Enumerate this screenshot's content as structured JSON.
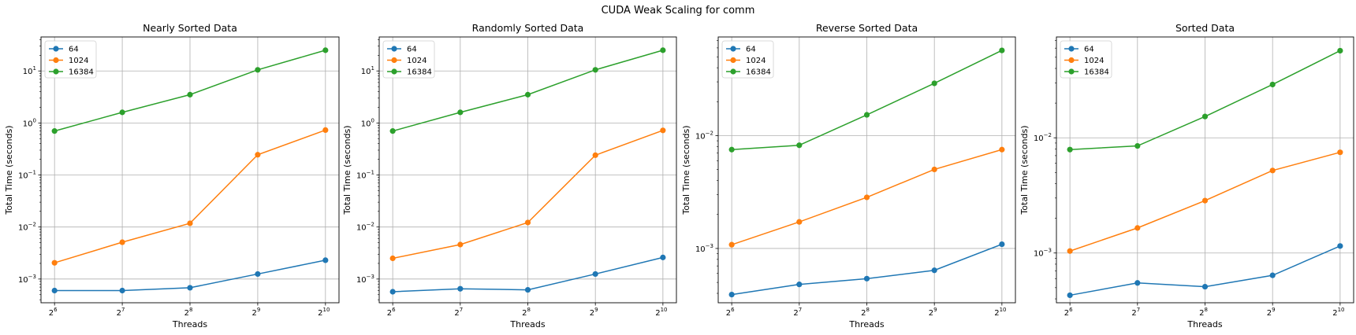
{
  "figure": {
    "title": "CUDA Weak Scaling for comm"
  },
  "colors": {
    "64": "#1f77b4",
    "1024": "#ff7f0e",
    "16384": "#2ca02c",
    "grid": "#b0b0b0"
  },
  "chart_data": [
    {
      "type": "line",
      "title": "Nearly Sorted Data",
      "xlabel": "Threads",
      "ylabel": "Total Time (seconds)",
      "xscale": "log2",
      "yscale": "log10",
      "x": [
        64,
        128,
        256,
        512,
        1024
      ],
      "x_tick_exponents": [
        "6",
        "7",
        "8",
        "9",
        "10"
      ],
      "ylim": [
        0.00035,
        45
      ],
      "y_tick_exponents": [
        "-3",
        "-2",
        "-1",
        "0",
        "1"
      ],
      "grid": true,
      "legend": "top-left",
      "series": [
        {
          "name": "64",
          "values": [
            0.0006,
            0.0006,
            0.00068,
            0.00125,
            0.0023
          ]
        },
        {
          "name": "1024",
          "values": [
            0.00205,
            0.0051,
            0.0118,
            0.245,
            0.73
          ]
        },
        {
          "name": "16384",
          "values": [
            0.7,
            1.6,
            3.5,
            10.5,
            25
          ]
        }
      ]
    },
    {
      "type": "line",
      "title": "Randomly Sorted Data",
      "xlabel": "Threads",
      "ylabel": "Total Time (seconds)",
      "xscale": "log2",
      "yscale": "log10",
      "x": [
        64,
        128,
        256,
        512,
        1024
      ],
      "x_tick_exponents": [
        "6",
        "7",
        "8",
        "9",
        "10"
      ],
      "ylim": [
        0.00035,
        45
      ],
      "y_tick_exponents": [
        "-3",
        "-2",
        "-1",
        "0",
        "1"
      ],
      "grid": true,
      "legend": "top-left",
      "series": [
        {
          "name": "64",
          "values": [
            0.00057,
            0.00065,
            0.00062,
            0.00125,
            0.0026
          ]
        },
        {
          "name": "1024",
          "values": [
            0.0025,
            0.0046,
            0.0122,
            0.24,
            0.72
          ]
        },
        {
          "name": "16384",
          "values": [
            0.7,
            1.6,
            3.5,
            10.5,
            25
          ]
        }
      ]
    },
    {
      "type": "line",
      "title": "Reverse Sorted Data",
      "xlabel": "Threads",
      "ylabel": "Total Time (seconds)",
      "xscale": "log2",
      "yscale": "log10",
      "x": [
        64,
        128,
        256,
        512,
        1024
      ],
      "x_tick_exponents": [
        "6",
        "7",
        "8",
        "9",
        "10"
      ],
      "ylim": [
        0.00033,
        0.075
      ],
      "y_tick_exponents": [
        "-3",
        "-2"
      ],
      "grid": true,
      "legend": "top-left",
      "series": [
        {
          "name": "64",
          "values": [
            0.00039,
            0.00048,
            0.00054,
            0.00064,
            0.00109
          ]
        },
        {
          "name": "1024",
          "values": [
            0.00108,
            0.00172,
            0.00284,
            0.00502,
            0.00752
          ]
        },
        {
          "name": "16384",
          "values": [
            0.00752,
            0.00822,
            0.0153,
            0.0291,
            0.057
          ]
        }
      ]
    },
    {
      "type": "line",
      "title": "Sorted Data",
      "xlabel": "Threads",
      "ylabel": "Total Time (seconds)",
      "xscale": "log2",
      "yscale": "log10",
      "x": [
        64,
        128,
        256,
        512,
        1024
      ],
      "x_tick_exponents": [
        "6",
        "7",
        "8",
        "9",
        "10"
      ],
      "ylim": [
        0.00037,
        0.075
      ],
      "y_tick_exponents": [
        "-3",
        "-2"
      ],
      "grid": true,
      "legend": "top-left",
      "series": [
        {
          "name": "64",
          "values": [
            0.00043,
            0.00055,
            0.00051,
            0.00064,
            0.00115
          ]
        },
        {
          "name": "1024",
          "values": [
            0.00104,
            0.00165,
            0.00285,
            0.0052,
            0.00748
          ]
        },
        {
          "name": "16384",
          "values": [
            0.0079,
            0.0085,
            0.0153,
            0.029,
            0.057
          ]
        }
      ]
    }
  ]
}
